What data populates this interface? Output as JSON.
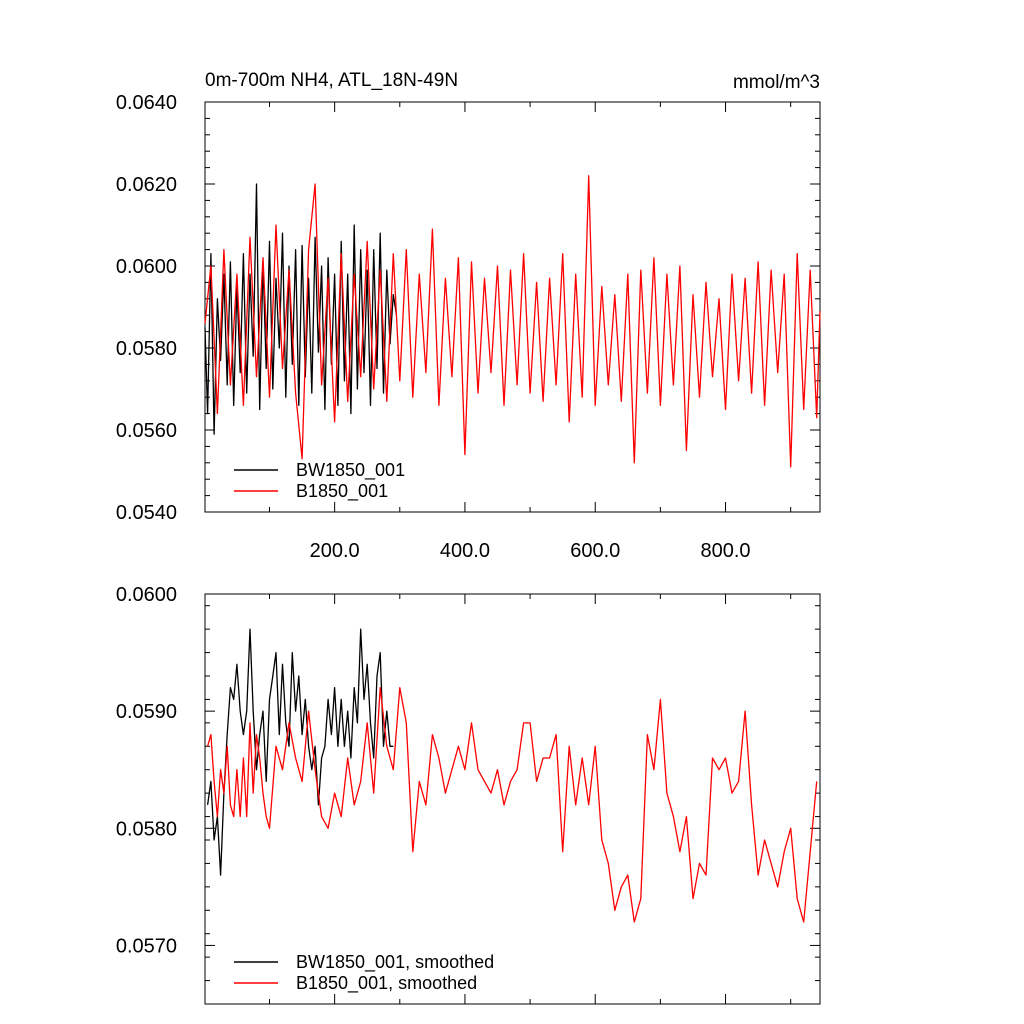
{
  "chart_data": [
    {
      "type": "line",
      "title": "0m-700m NH4, ATL_18N-49N",
      "units": "mmol/m^3",
      "xlim": [
        1,
        945
      ],
      "ylim": [
        0.054,
        0.064
      ],
      "x_ticks": [
        200,
        400,
        600,
        800
      ],
      "x_tick_labels": [
        "200.0",
        "400.0",
        "600.0",
        "800.0"
      ],
      "y_ticks": [
        0.054,
        0.056,
        0.058,
        0.06,
        0.062,
        0.064
      ],
      "y_tick_labels": [
        "0.0540",
        "0.0560",
        "0.0580",
        "0.0600",
        "0.0620",
        "0.0640"
      ],
      "legend_position": "bottom-left",
      "series": [
        {
          "name": "BW1850_001",
          "color": "#000000",
          "x": [
            1,
            5,
            10,
            15,
            20,
            25,
            30,
            35,
            40,
            45,
            50,
            55,
            60,
            65,
            70,
            75,
            80,
            85,
            90,
            95,
            100,
            105,
            110,
            115,
            120,
            125,
            130,
            135,
            140,
            145,
            150,
            155,
            160,
            165,
            170,
            175,
            180,
            185,
            190,
            195,
            200,
            205,
            210,
            215,
            220,
            225,
            230,
            235,
            240,
            245,
            250,
            255,
            260,
            265,
            270,
            275,
            280,
            285,
            290,
            295
          ],
          "values": [
            0.0585,
            0.0564,
            0.0603,
            0.0559,
            0.0592,
            0.0577,
            0.0598,
            0.0571,
            0.0601,
            0.0566,
            0.0595,
            0.0574,
            0.0603,
            0.0569,
            0.0598,
            0.0578,
            0.062,
            0.0565,
            0.0601,
            0.0575,
            0.0606,
            0.057,
            0.0597,
            0.058,
            0.0608,
            0.0568,
            0.06,
            0.0576,
            0.0604,
            0.0566,
            0.0605,
            0.0573,
            0.0597,
            0.0569,
            0.0607,
            0.0579,
            0.06,
            0.0565,
            0.0602,
            0.0576,
            0.0598,
            0.0566,
            0.0606,
            0.0572,
            0.0598,
            0.0564,
            0.061,
            0.057,
            0.0604,
            0.0574,
            0.0599,
            0.0566,
            0.0604,
            0.0575,
            0.0608,
            0.0569,
            0.0599,
            0.0581,
            0.0593,
            0.0588
          ]
        },
        {
          "name": "B1850_001",
          "color": "#ff0000",
          "x": [
            1,
            10,
            20,
            30,
            40,
            50,
            60,
            70,
            80,
            90,
            100,
            110,
            120,
            130,
            140,
            150,
            160,
            170,
            180,
            190,
            200,
            210,
            220,
            230,
            240,
            250,
            260,
            270,
            280,
            290,
            300,
            310,
            320,
            330,
            340,
            350,
            360,
            370,
            380,
            390,
            400,
            410,
            420,
            430,
            440,
            450,
            460,
            470,
            480,
            490,
            500,
            510,
            520,
            530,
            540,
            550,
            560,
            570,
            580,
            590,
            600,
            610,
            620,
            630,
            640,
            650,
            660,
            670,
            680,
            690,
            700,
            710,
            720,
            730,
            740,
            750,
            760,
            770,
            780,
            790,
            800,
            810,
            820,
            830,
            840,
            850,
            860,
            870,
            880,
            890,
            900,
            910,
            920,
            930,
            940,
            945
          ],
          "values": [
            0.0586,
            0.06,
            0.0564,
            0.0604,
            0.0571,
            0.0598,
            0.0566,
            0.0607,
            0.0573,
            0.0602,
            0.0568,
            0.061,
            0.0575,
            0.0599,
            0.0569,
            0.0553,
            0.0604,
            0.062,
            0.0571,
            0.0597,
            0.0562,
            0.0603,
            0.0567,
            0.0598,
            0.0573,
            0.0606,
            0.057,
            0.0599,
            0.0567,
            0.0603,
            0.0572,
            0.0604,
            0.0568,
            0.0598,
            0.0574,
            0.0609,
            0.0566,
            0.0597,
            0.0573,
            0.0602,
            0.0554,
            0.0601,
            0.0569,
            0.0597,
            0.0574,
            0.06,
            0.0566,
            0.0599,
            0.0571,
            0.0603,
            0.0569,
            0.0596,
            0.0567,
            0.0597,
            0.0571,
            0.0603,
            0.0562,
            0.0598,
            0.0568,
            0.0622,
            0.0566,
            0.0595,
            0.0571,
            0.0593,
            0.0567,
            0.0598,
            0.0552,
            0.0599,
            0.0569,
            0.0602,
            0.0566,
            0.0598,
            0.0571,
            0.06,
            0.0555,
            0.0593,
            0.0568,
            0.0596,
            0.0573,
            0.0592,
            0.0565,
            0.0598,
            0.0572,
            0.0597,
            0.0569,
            0.0601,
            0.0566,
            0.0599,
            0.0574,
            0.0598,
            0.0551,
            0.0603,
            0.0565,
            0.0599,
            0.0563,
            0.0589
          ]
        }
      ]
    },
    {
      "type": "line",
      "xlim": [
        1,
        945
      ],
      "ylim": [
        0.0565,
        0.06
      ],
      "x_ticks": [
        200,
        400,
        600,
        800
      ],
      "y_ticks": [
        0.057,
        0.058,
        0.059,
        0.06
      ],
      "y_tick_labels": [
        "0.0570",
        "0.0580",
        "0.0590",
        "0.0600"
      ],
      "legend_position": "bottom-left",
      "series": [
        {
          "name": "BW1850_001, smoothed",
          "color": "#000000",
          "x": [
            5,
            10,
            15,
            20,
            25,
            30,
            35,
            40,
            45,
            50,
            55,
            60,
            65,
            70,
            75,
            80,
            85,
            90,
            95,
            100,
            105,
            110,
            115,
            120,
            125,
            130,
            135,
            140,
            145,
            150,
            155,
            160,
            165,
            170,
            175,
            180,
            185,
            190,
            195,
            200,
            205,
            210,
            215,
            220,
            225,
            230,
            235,
            240,
            245,
            250,
            255,
            260,
            265,
            270,
            275,
            280,
            285,
            290
          ],
          "values": [
            0.0582,
            0.0584,
            0.0579,
            0.0581,
            0.0576,
            0.0583,
            0.0588,
            0.0592,
            0.0591,
            0.0594,
            0.059,
            0.0588,
            0.059,
            0.0597,
            0.059,
            0.0585,
            0.0588,
            0.059,
            0.0584,
            0.0591,
            0.0593,
            0.0595,
            0.0588,
            0.0594,
            0.0589,
            0.0587,
            0.0595,
            0.059,
            0.0593,
            0.0588,
            0.0591,
            0.0587,
            0.0585,
            0.0587,
            0.0582,
            0.0586,
            0.0587,
            0.0591,
            0.0588,
            0.0592,
            0.0587,
            0.0591,
            0.0587,
            0.059,
            0.0586,
            0.0592,
            0.0589,
            0.0597,
            0.0591,
            0.0594,
            0.0589,
            0.0586,
            0.0593,
            0.0595,
            0.0587,
            0.059,
            0.0587,
            0.0587
          ]
        },
        {
          "name": "B1850_001, smoothed",
          "color": "#ff0000",
          "x": [
            5,
            10,
            15,
            20,
            25,
            30,
            35,
            40,
            45,
            50,
            55,
            60,
            65,
            70,
            75,
            80,
            85,
            90,
            95,
            100,
            110,
            120,
            130,
            140,
            150,
            160,
            170,
            180,
            190,
            200,
            210,
            220,
            230,
            240,
            250,
            260,
            270,
            280,
            290,
            300,
            310,
            320,
            330,
            340,
            350,
            360,
            370,
            380,
            390,
            400,
            410,
            420,
            430,
            440,
            450,
            460,
            470,
            480,
            490,
            500,
            510,
            520,
            530,
            540,
            550,
            560,
            570,
            580,
            590,
            600,
            610,
            620,
            630,
            640,
            650,
            660,
            670,
            680,
            690,
            700,
            710,
            720,
            730,
            740,
            750,
            760,
            770,
            780,
            790,
            800,
            810,
            820,
            830,
            840,
            850,
            860,
            870,
            880,
            890,
            900,
            910,
            920,
            930,
            940
          ],
          "values": [
            0.0587,
            0.0588,
            0.0584,
            0.0581,
            0.0585,
            0.0583,
            0.0587,
            0.0582,
            0.0581,
            0.0585,
            0.0581,
            0.0586,
            0.0581,
            0.0589,
            0.0583,
            0.0588,
            0.0586,
            0.0583,
            0.0581,
            0.058,
            0.0587,
            0.0585,
            0.0589,
            0.0586,
            0.0584,
            0.059,
            0.0585,
            0.0581,
            0.058,
            0.0583,
            0.0581,
            0.0586,
            0.0582,
            0.0584,
            0.0589,
            0.0583,
            0.0592,
            0.0587,
            0.0585,
            0.0592,
            0.0589,
            0.0578,
            0.0584,
            0.0582,
            0.0588,
            0.0586,
            0.0583,
            0.0585,
            0.0587,
            0.0585,
            0.0589,
            0.0585,
            0.0584,
            0.0583,
            0.0585,
            0.0582,
            0.0584,
            0.0585,
            0.0589,
            0.0589,
            0.0584,
            0.0586,
            0.0586,
            0.0588,
            0.0578,
            0.0587,
            0.0582,
            0.0586,
            0.0582,
            0.0587,
            0.0579,
            0.0577,
            0.0573,
            0.0575,
            0.0576,
            0.0572,
            0.0574,
            0.0588,
            0.0585,
            0.0591,
            0.0583,
            0.0581,
            0.0578,
            0.0581,
            0.0574,
            0.0577,
            0.0576,
            0.0586,
            0.0585,
            0.0586,
            0.0583,
            0.0584,
            0.059,
            0.0582,
            0.0576,
            0.0579,
            0.0577,
            0.0575,
            0.0578,
            0.058,
            0.0574,
            0.0572,
            0.0578,
            0.0584
          ]
        }
      ]
    }
  ]
}
